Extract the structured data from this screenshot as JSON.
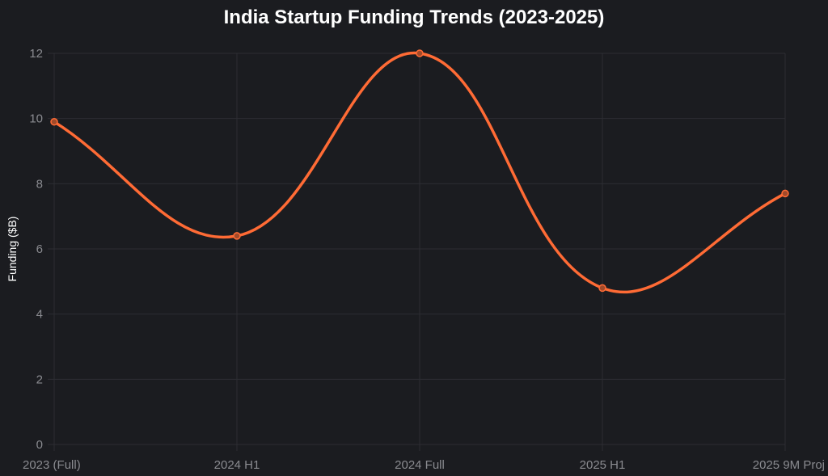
{
  "chart_data": {
    "type": "line",
    "title": "India Startup Funding Trends (2023-2025)",
    "xlabel": "",
    "ylabel": "Funding ($B)",
    "categories": [
      "2023 (Full)",
      "2024 H1",
      "2024 Full",
      "2025 H1",
      "2025 9M Proj"
    ],
    "series": [
      {
        "name": "Funding",
        "values": [
          9.9,
          6.4,
          12.0,
          4.8,
          7.7
        ],
        "color": "#ff6b35"
      }
    ],
    "ylim": [
      0,
      12
    ],
    "yticks": [
      0,
      2,
      4,
      6,
      8,
      10,
      12
    ],
    "grid": true,
    "legend": "none"
  }
}
